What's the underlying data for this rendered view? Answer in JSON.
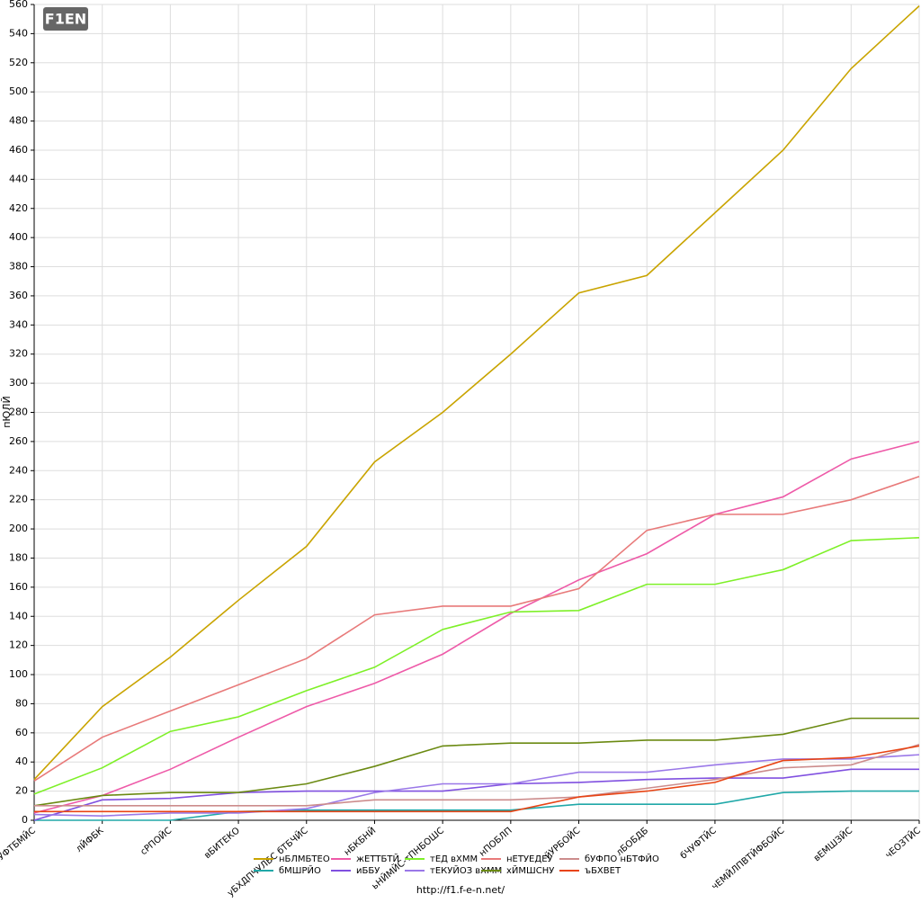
{
  "logo": "F1EN",
  "chart_data": {
    "type": "line",
    "y_label": "пЮЛЙ",
    "footer": "http://f1.f-e-n.net/",
    "categories": [
      "бЧУФТБМЙС",
      "лЙФБК",
      "сРПОЙС",
      "вБИТЕКО",
      "уБХДПЧУЛБС бТБЧЙС",
      "нБКБНЙ",
      "ьНЙМЙС-тПНБОШС",
      "нПОБЛП",
      "йУРБОЙС",
      "лБОБДБ",
      "бЧУФТЙС",
      "чЕМЙЛПВТЙФБОЙС",
      "вЕМШЗЙС",
      "чЕОЗТЙС"
    ],
    "ylim": [
      0,
      560
    ],
    "yticks": [
      0,
      20,
      40,
      60,
      80,
      100,
      120,
      140,
      160,
      180,
      200,
      220,
      240,
      260,
      280,
      300,
      320,
      340,
      360,
      380,
      400,
      420,
      440,
      460,
      480,
      500,
      520,
      540,
      560
    ],
    "grid": true,
    "series": [
      {
        "name": "нБЛМБТЕО",
        "color": "#c9a400",
        "values": [
          28,
          78,
          112,
          151,
          188,
          246,
          280,
          320,
          362,
          374,
          417,
          460,
          516,
          559
        ]
      },
      {
        "name": "бМШРЙО",
        "color": "#20a8a8",
        "values": [
          0,
          0,
          0,
          6,
          7,
          7,
          7,
          7,
          11,
          11,
          11,
          19,
          20,
          20
        ]
      },
      {
        "name": "жЕТТБТЙ",
        "color": "#ee5aa8",
        "values": [
          5,
          17,
          35,
          57,
          78,
          94,
          114,
          142,
          165,
          183,
          210,
          222,
          248,
          260
        ]
      },
      {
        "name": "иББУ",
        "color": "#8050e0",
        "values": [
          0,
          14,
          15,
          19,
          20,
          20,
          20,
          25,
          26,
          28,
          29,
          29,
          35,
          35
        ]
      },
      {
        "name": "тЕД вХММ",
        "color": "#7ef028",
        "values": [
          18,
          36,
          61,
          71,
          89,
          105,
          131,
          143,
          144,
          162,
          162,
          172,
          192,
          194
        ]
      },
      {
        "name": "тЕКУЙОЗ вХММ",
        "color": "#9a78e8",
        "values": [
          4,
          3,
          5,
          5,
          8,
          19,
          25,
          25,
          33,
          33,
          38,
          42,
          42,
          45
        ]
      },
      {
        "name": "нЕТУЕДЕУ",
        "color": "#e87a7a",
        "values": [
          27,
          57,
          75,
          93,
          111,
          141,
          147,
          147,
          159,
          199,
          210,
          210,
          220,
          236
        ]
      },
      {
        "name": "хЙМШСНУ",
        "color": "#6b8a12",
        "values": [
          10,
          17,
          19,
          19,
          25,
          37,
          51,
          53,
          53,
          55,
          55,
          59,
          70,
          70
        ]
      },
      {
        "name": "бУФПО нБТФЙО",
        "color": "#cc8c8c",
        "values": [
          10,
          10,
          10,
          10,
          10,
          14,
          14,
          14,
          16,
          22,
          28,
          36,
          38,
          52
        ]
      },
      {
        "name": "ъБХВЕТ",
        "color": "#e84414",
        "values": [
          6,
          6,
          6,
          6,
          6,
          6,
          6,
          6,
          16,
          20,
          26,
          41,
          43,
          51
        ]
      }
    ]
  }
}
